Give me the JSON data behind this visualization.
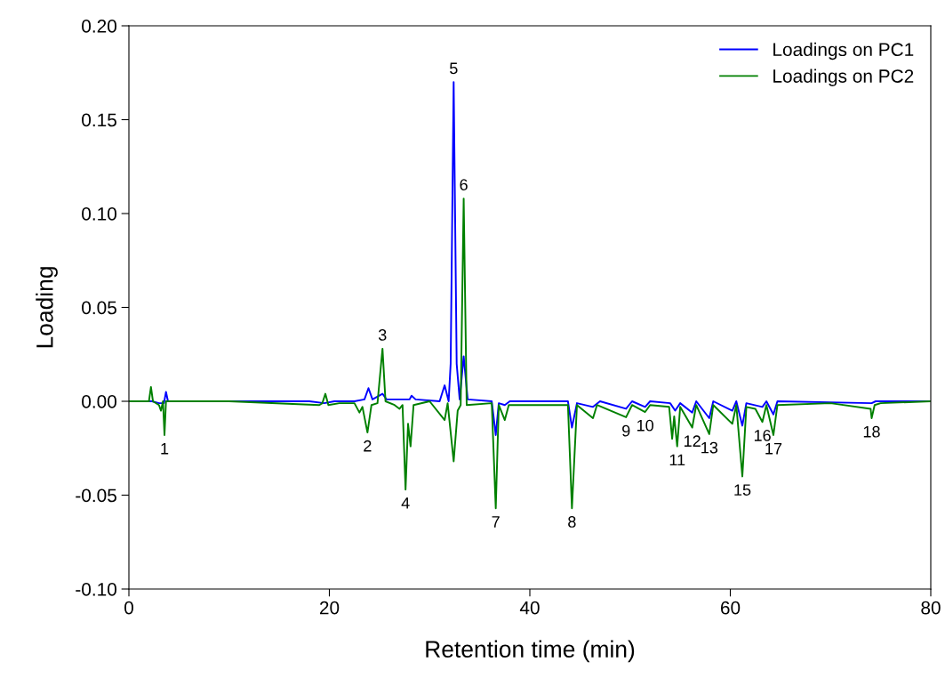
{
  "chart_data": {
    "type": "line",
    "xlabel": "Retention time (min)",
    "ylabel": "Loading",
    "xlim": [
      0,
      80
    ],
    "xticks": [
      0,
      20,
      40,
      60,
      80
    ],
    "ylim": [
      -0.1,
      0.2
    ],
    "yticks": [
      {
        "value": -0.1,
        "label": "-0.10"
      },
      {
        "value": -0.05,
        "label": "-0.05"
      },
      {
        "value": 0,
        "label": "0.00"
      },
      {
        "value": 0.05,
        "label": "0.05"
      },
      {
        "value": 0.1,
        "label": "0.10"
      },
      {
        "value": 0.15,
        "label": "0.15"
      },
      {
        "value": 0.2,
        "label": "0.20"
      }
    ],
    "grid": false,
    "legend": "top right",
    "marker": "none",
    "line_style": "solid",
    "series": [
      {
        "name": "Loadings on PC1",
        "color": "#0000ff",
        "x": [
          0,
          2.0,
          2.3,
          3.0,
          3.5,
          3.7,
          3.9,
          10,
          18,
          19.5,
          20.5,
          22.5,
          23.5,
          23.9,
          24.3,
          25.3,
          25.7,
          27.0,
          28.0,
          28.2,
          28.6,
          31.0,
          31.5,
          31.9,
          32.1,
          32.4,
          32.7,
          33.0,
          33.4,
          33.8,
          36.2,
          36.6,
          36.9,
          37.5,
          38,
          43.8,
          44.2,
          44.7,
          46.3,
          47,
          49.6,
          50.2,
          51.5,
          52,
          54.0,
          54.5,
          55,
          56.2,
          56.6,
          57.9,
          58.3,
          60.2,
          60.6,
          61.2,
          61.6,
          63.2,
          63.6,
          64.3,
          64.7,
          74.1,
          74.5,
          80
        ],
        "values": [
          0,
          0,
          0,
          -0.001,
          -0.001,
          0.005,
          0,
          0,
          0,
          -0.001,
          0,
          0,
          0.001,
          0.007,
          0.001,
          0.004,
          0.001,
          0.001,
          0.001,
          0.003,
          0.001,
          0,
          0.0085,
          0,
          0.02,
          0.17,
          0.02,
          0.001,
          0.024,
          0.001,
          0,
          -0.018,
          -0.001,
          -0.002,
          0,
          0,
          -0.014,
          -0.001,
          -0.003,
          0,
          -0.004,
          0,
          -0.003,
          0,
          -0.001,
          -0.005,
          -0.001,
          -0.006,
          0,
          -0.009,
          0,
          -0.005,
          0,
          -0.013,
          -0.001,
          -0.003,
          0,
          -0.007,
          0,
          -0.001,
          0,
          0
        ]
      },
      {
        "name": "Loadings on PC2",
        "color": "#008000",
        "x": [
          0,
          2.0,
          2.2,
          2.4,
          3.0,
          3.2,
          3.4,
          3.55,
          3.7,
          10,
          19.0,
          19.3,
          19.6,
          19.9,
          21,
          22.5,
          23.0,
          23.3,
          23.8,
          24.2,
          24.8,
          25.3,
          25.6,
          26.5,
          27.0,
          27.3,
          27.6,
          27.85,
          28.1,
          28.4,
          30,
          31.5,
          31.8,
          32.4,
          32.8,
          33.1,
          33.4,
          33.7,
          36.2,
          36.6,
          36.9,
          37.5,
          37.9,
          43.8,
          44.2,
          44.7,
          46.3,
          46.7,
          49.6,
          50.2,
          51.5,
          52,
          53.9,
          54.2,
          54.4,
          54.7,
          55,
          56.2,
          56.6,
          57.9,
          58.3,
          60.2,
          60.6,
          61.2,
          61.6,
          62.5,
          63.2,
          63.6,
          64.3,
          64.7,
          70,
          74.0,
          74.1,
          74.4,
          75,
          80
        ],
        "values": [
          0,
          0,
          0.0076,
          0,
          -0.002,
          -0.005,
          0,
          -0.018,
          0,
          0,
          -0.002,
          -0.001,
          0.004,
          -0.002,
          -0.001,
          -0.001,
          -0.006,
          -0.003,
          -0.0166,
          -0.002,
          -0.001,
          0.028,
          0,
          -0.002,
          -0.004,
          -0.002,
          -0.047,
          -0.012,
          -0.024,
          -0.002,
          0,
          -0.01,
          -0.001,
          -0.032,
          -0.005,
          -0.002,
          0.108,
          -0.002,
          -0.001,
          -0.057,
          -0.002,
          -0.01,
          -0.002,
          -0.002,
          -0.057,
          -0.002,
          -0.009,
          -0.002,
          -0.0085,
          -0.002,
          -0.0057,
          -0.002,
          -0.003,
          -0.02,
          -0.008,
          -0.024,
          -0.003,
          -0.014,
          -0.002,
          -0.0175,
          -0.002,
          -0.012,
          -0.002,
          -0.04,
          -0.003,
          -0.004,
          -0.011,
          -0.002,
          -0.018,
          -0.002,
          -0.001,
          -0.004,
          -0.009,
          -0.002,
          -0.001,
          0
        ]
      }
    ],
    "annotations": [
      {
        "text": "1",
        "x": 3.55,
        "y": -0.018
      },
      {
        "text": "2",
        "x": 23.8,
        "y": -0.0166
      },
      {
        "text": "3",
        "x": 25.3,
        "y": 0.028
      },
      {
        "text": "4",
        "x": 27.6,
        "y": -0.047
      },
      {
        "text": "5",
        "x": 32.4,
        "y": 0.17
      },
      {
        "text": "6",
        "x": 33.4,
        "y": 0.108
      },
      {
        "text": "7",
        "x": 36.6,
        "y": -0.057
      },
      {
        "text": "8",
        "x": 44.2,
        "y": -0.057
      },
      {
        "text": "9",
        "x": 49.6,
        "y": -0.0085
      },
      {
        "text": "10",
        "x": 51.5,
        "y": -0.0057
      },
      {
        "text": "11",
        "x": 54.7,
        "y": -0.024
      },
      {
        "text": "12",
        "x": 56.2,
        "y": -0.014
      },
      {
        "text": "13",
        "x": 57.9,
        "y": -0.0175
      },
      {
        "text": "15",
        "x": 61.2,
        "y": -0.04
      },
      {
        "text": "16",
        "x": 63.2,
        "y": -0.011
      },
      {
        "text": "17",
        "x": 64.3,
        "y": -0.018
      },
      {
        "text": "18",
        "x": 74.1,
        "y": -0.009
      }
    ]
  }
}
